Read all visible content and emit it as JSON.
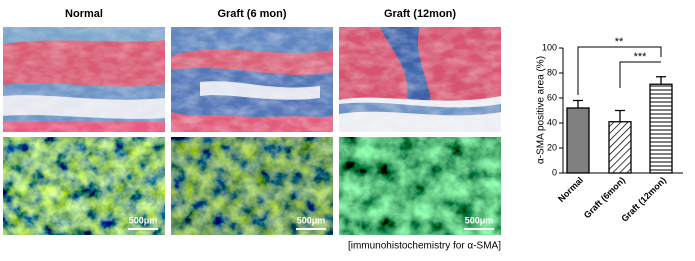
{
  "panels": {
    "titles": [
      "Normal",
      "Graft (6 mon)",
      "Graft (12mon)"
    ],
    "scale_bar": "500μm",
    "caption": "[immunohistochemistry for α-SMA]"
  },
  "chart_data": {
    "type": "bar",
    "ylabel": "α-SMA positive area (%)",
    "categories": [
      "Normal",
      "Graft (6mon)",
      "Graft (12mon)"
    ],
    "values": [
      52,
      41,
      71
    ],
    "errors": [
      6,
      9,
      6
    ],
    "colors": [
      "#808080",
      "#ffffff",
      "#ffffff"
    ],
    "patterns": [
      "solid",
      "diagonal",
      "horizontal"
    ],
    "ylim": [
      0,
      100
    ],
    "yticks": [
      0,
      20,
      40,
      60,
      80,
      100
    ],
    "annotations": [
      "**",
      "***"
    ]
  }
}
